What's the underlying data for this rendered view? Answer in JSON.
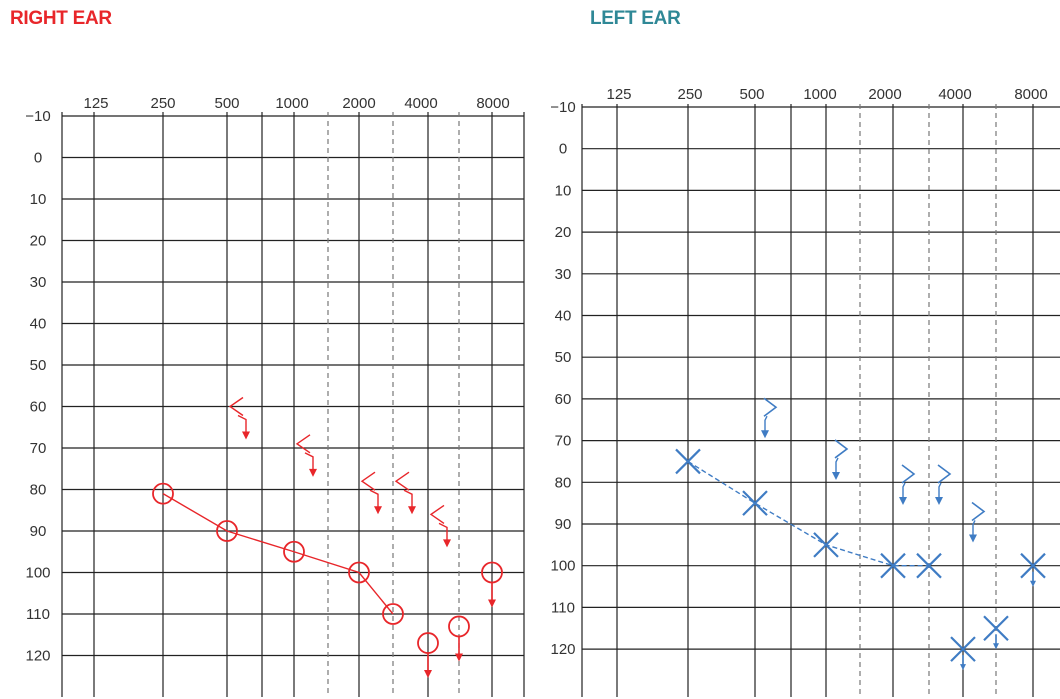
{
  "titles": {
    "right": "RIGHT EAR",
    "left": "LEFT EAR"
  },
  "colors": {
    "right": "#e8262a",
    "left": "#3f7cc4",
    "left_title": "#2f8896",
    "right_title": "#e8262a",
    "grid": "#222222"
  },
  "chart_data": [
    {
      "type": "scatter",
      "title": "RIGHT EAR",
      "x_ticks": [
        "125",
        "250",
        "500",
        "1000",
        "2000",
        "4000",
        "8000"
      ],
      "y_ticks": [
        "-10",
        "0",
        "10",
        "20",
        "30",
        "40",
        "50",
        "60",
        "70",
        "80",
        "90",
        "100",
        "110",
        "120"
      ],
      "ylim": [
        -10,
        125
      ],
      "y_inverted": true,
      "x_scale": "log (octaves), dashed lines at inter-octave 1500, 3000, 6000",
      "series": [
        {
          "symbol": "circle",
          "connected": true,
          "points": [
            {
              "x": 250,
              "y": 81
            },
            {
              "x": 500,
              "y": 90
            },
            {
              "x": 1000,
              "y": 95
            },
            {
              "x": 2000,
              "y": 100
            },
            {
              "x": 3000,
              "y": 110
            },
            {
              "x": 4000,
              "y": 117
            },
            {
              "x": 6000,
              "y": 113
            },
            {
              "x": 8000,
              "y": 100
            }
          ],
          "no_response": [
            4000,
            6000,
            8000
          ]
        },
        {
          "symbol": "bracket-left",
          "connected": false,
          "points": [
            {
              "x": 500,
              "y": 60
            },
            {
              "x": 1000,
              "y": 69
            },
            {
              "x": 2000,
              "y": 78
            },
            {
              "x": 3000,
              "y": 78
            },
            {
              "x": 4000,
              "y": 86
            }
          ],
          "no_response": [
            500,
            1000,
            2000,
            3000,
            4000
          ]
        }
      ]
    },
    {
      "type": "scatter",
      "title": "LEFT EAR",
      "x_ticks": [
        "125",
        "250",
        "500",
        "1000",
        "2000",
        "4000",
        "8000"
      ],
      "y_ticks": [
        "-10",
        "0",
        "10",
        "20",
        "30",
        "40",
        "50",
        "60",
        "70",
        "80",
        "90",
        "100",
        "110",
        "120"
      ],
      "ylim": [
        -10,
        125
      ],
      "y_inverted": true,
      "x_scale": "log (octaves), dashed lines at inter-octave 1500, 3000, 6000",
      "series": [
        {
          "symbol": "x",
          "connected": true,
          "line_style": "dashed",
          "points": [
            {
              "x": 250,
              "y": 75
            },
            {
              "x": 500,
              "y": 85
            },
            {
              "x": 1000,
              "y": 95
            },
            {
              "x": 2000,
              "y": 100
            },
            {
              "x": 3000,
              "y": 100
            },
            {
              "x": 4000,
              "y": 120
            },
            {
              "x": 6000,
              "y": 115
            },
            {
              "x": 8000,
              "y": 100
            }
          ],
          "no_response": [
            4000,
            6000,
            8000
          ]
        },
        {
          "symbol": "bracket-right",
          "connected": false,
          "points": [
            {
              "x": 500,
              "y": 62
            },
            {
              "x": 1000,
              "y": 72
            },
            {
              "x": 2000,
              "y": 78
            },
            {
              "x": 3000,
              "y": 78
            },
            {
              "x": 4000,
              "y": 87
            }
          ],
          "no_response": [
            500,
            1000,
            2000,
            3000,
            4000
          ]
        }
      ]
    }
  ]
}
